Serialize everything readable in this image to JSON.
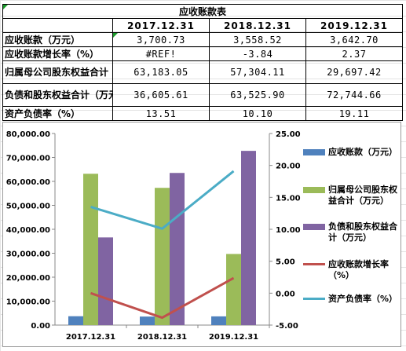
{
  "table": {
    "title": "应收账款表",
    "headers": [
      "",
      "2017.12.31",
      "2018.12.31",
      "2019.12.31"
    ],
    "rows": [
      {
        "label": "应收账款（万元）",
        "values": [
          "3,700.73",
          "3,558.52",
          "3,642.70"
        ]
      },
      {
        "label": "应收账款增长率（%）",
        "values": [
          "#REF!",
          "-3.84",
          "2.37"
        ]
      },
      {
        "label": "归属母公司股东权益合计（万元）",
        "values": [
          "63,183.05",
          "57,304.11",
          "29,697.42"
        ]
      },
      {
        "label": "负债和股东权益合计（万元）",
        "values": [
          "36,605.61",
          "63,525.90",
          "72,744.66"
        ]
      },
      {
        "label": "资产负债率（%）",
        "values": [
          "13.51",
          "10.10",
          "19.11"
        ]
      }
    ]
  },
  "colors": {
    "receivables": "#4f81bd",
    "equity": "#9bbb59",
    "liabilities_equity": "#8064a2",
    "growth": "#c0504d",
    "debt_ratio": "#4bacc6",
    "error_marker": "#1a9a2a"
  },
  "chart_data": {
    "type": "bar",
    "categories": [
      "2017.12.31",
      "2018.12.31",
      "2019.12.31"
    ],
    "y_left": {
      "min": 0,
      "max": 80000,
      "step": 10000,
      "ticks": [
        "0.00",
        "10,000.00",
        "20,000.00",
        "30,000.00",
        "40,000.00",
        "50,000.00",
        "60,000.00",
        "70,000.00",
        "80,000.00"
      ]
    },
    "y_right": {
      "min": -5,
      "max": 25,
      "step": 5,
      "ticks": [
        "-5.00",
        "0.00",
        "5.00",
        "10.00",
        "15.00",
        "20.00",
        "25.00"
      ]
    },
    "grid": false,
    "legend_position": "right",
    "series": [
      {
        "name": "应收账款（万元）",
        "kind": "bar",
        "axis": "left",
        "color_key": "receivables",
        "values": [
          3700.73,
          3558.52,
          3642.7
        ]
      },
      {
        "name": "归属母公司股东权益合计（万元）",
        "kind": "bar",
        "axis": "left",
        "color_key": "equity",
        "values": [
          63183.05,
          57304.11,
          29697.42
        ]
      },
      {
        "name": "负债和股东权益合计（万元）",
        "kind": "bar",
        "axis": "left",
        "color_key": "liabilities_equity",
        "values": [
          36605.61,
          63525.9,
          72744.66
        ]
      },
      {
        "name": "应收账款增长率（%）",
        "kind": "line",
        "axis": "right",
        "color_key": "growth",
        "values": [
          0,
          -3.84,
          2.37
        ]
      },
      {
        "name": "资产负债率（%）",
        "kind": "line",
        "axis": "right",
        "color_key": "debt_ratio",
        "values": [
          13.51,
          10.1,
          19.11
        ]
      }
    ]
  }
}
